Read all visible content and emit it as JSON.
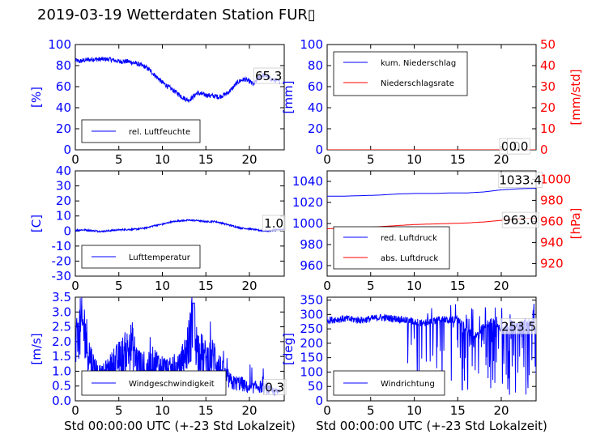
{
  "title": "2019-03-19 Wetterdaten Station FUR\u0000",
  "colors": {
    "blue": "#0000ff",
    "red": "#ff0000",
    "black": "#000000"
  },
  "chart_data": [
    {
      "id": "humidity",
      "type": "line",
      "xlabel": "",
      "ylabel": "[%]",
      "ylabel_color": "#0000ff",
      "xlim": [
        0,
        24
      ],
      "xticks": [
        0,
        5,
        10,
        15,
        20
      ],
      "ylim": [
        0,
        100
      ],
      "yticks": [
        0,
        20,
        40,
        60,
        80,
        100
      ],
      "ytick_color": "#0000ff",
      "legend_position": "lower-left",
      "annotations": [
        {
          "text": "65.3",
          "x": 22.2,
          "y": 70
        }
      ],
      "series": [
        {
          "name": "rel. Luftfeuchte",
          "color": "#0000ff",
          "style": "noisy",
          "x": [
            0,
            0.5,
            1,
            2,
            3,
            4,
            5,
            6,
            7,
            8,
            8.5,
            9,
            9.5,
            10,
            10.5,
            11,
            11.5,
            12,
            12.5,
            13,
            13.5,
            14,
            15,
            16,
            16.5,
            17,
            17.5,
            18,
            18.5,
            19,
            19.5,
            20,
            20.5,
            21,
            21.5,
            22,
            22.5,
            23,
            23.5
          ],
          "y": [
            85,
            84,
            85,
            86,
            86,
            86,
            84,
            84,
            82,
            79,
            76,
            72,
            68,
            64,
            61,
            58,
            55,
            52,
            49,
            47,
            50,
            54,
            52,
            51,
            50,
            52,
            54,
            58,
            63,
            66,
            67,
            65,
            62,
            68,
            71,
            70,
            67,
            66,
            65
          ]
        }
      ]
    },
    {
      "id": "precip",
      "type": "line",
      "xlabel": "",
      "ylabel": "[mm]",
      "ylabel_color": "#0000ff",
      "ylabel_right": "[mm/std]",
      "ylabel_right_color": "#ff0000",
      "xlim": [
        0,
        24
      ],
      "xticks": [
        0,
        5,
        10,
        15,
        20
      ],
      "ylim": [
        0,
        100
      ],
      "yticks": [
        0,
        20,
        40,
        60,
        80,
        100
      ],
      "ytick_color": "#0000ff",
      "ylim_right": [
        0,
        50
      ],
      "yticks_right": [
        0,
        10,
        20,
        30,
        40,
        50
      ],
      "ytick_right_color": "#ff0000",
      "legend_position": "upper-left",
      "annotations": [
        {
          "text": "0.0",
          "x": 21.1,
          "y": 3
        },
        {
          "text": "0.0",
          "x": 22.0,
          "y": 3
        }
      ],
      "series": [
        {
          "name": "kum. Niederschlag",
          "color": "#0000ff",
          "axis": "left",
          "style": "smooth",
          "x": [
            0,
            24
          ],
          "y": [
            0,
            0
          ]
        },
        {
          "name": "Niederschlagsrate",
          "color": "#ff0000",
          "axis": "right",
          "style": "smooth",
          "x": [
            0,
            24
          ],
          "y": [
            0,
            0
          ]
        }
      ]
    },
    {
      "id": "temperature",
      "type": "line",
      "xlabel": "",
      "ylabel": "[C]",
      "ylabel_color": "#0000ff",
      "xlim": [
        0,
        24
      ],
      "xticks": [
        0,
        5,
        10,
        15,
        20
      ],
      "ylim": [
        -30,
        40
      ],
      "yticks": [
        -30,
        -20,
        -10,
        0,
        10,
        20,
        30,
        40
      ],
      "ytick_color": "#0000ff",
      "legend_position": "lower-left",
      "annotations": [
        {
          "text": "1.0",
          "x": 22.8,
          "y": 5
        }
      ],
      "series": [
        {
          "name": "Lufttemperatur",
          "color": "#0000ff",
          "style": "noisy_small",
          "x": [
            0,
            1,
            2,
            3,
            4,
            5,
            6,
            7,
            8,
            9,
            10,
            11,
            12,
            13,
            14,
            15,
            16,
            17,
            18,
            19,
            20,
            21,
            22,
            23,
            24
          ],
          "y": [
            0.5,
            0.8,
            0.2,
            -0.3,
            0.3,
            0.8,
            1.0,
            1.2,
            2.0,
            3.5,
            4.5,
            6.0,
            6.8,
            7.2,
            7.0,
            6.2,
            6.4,
            5.0,
            3.5,
            2.0,
            1.5,
            0.5,
            0.0,
            0.8,
            1.0
          ]
        }
      ]
    },
    {
      "id": "pressure",
      "type": "line",
      "xlabel": "",
      "ylabel": "",
      "ylabel_right": "[hPa]",
      "ylabel_right_color": "#ff0000",
      "xlim": [
        0,
        24
      ],
      "xticks": [
        0,
        5,
        10,
        15,
        20
      ],
      "ylim": [
        950,
        1050
      ],
      "yticks": [
        960,
        980,
        1000,
        1020,
        1040
      ],
      "ytick_color": "#0000ff",
      "ylim_right": [
        908,
        1008
      ],
      "yticks_right": [
        920,
        940,
        960,
        980,
        1000
      ],
      "ytick_right_color": "#ff0000",
      "legend_position": "lower-left",
      "annotations": [
        {
          "text": "1033.4",
          "x": 22.2,
          "y": 1041
        },
        {
          "text": "963.0",
          "x": 22.2,
          "y": 1003
        }
      ],
      "series": [
        {
          "name": "red. Luftdruck",
          "color": "#0000ff",
          "axis": "left",
          "style": "smooth",
          "x": [
            0,
            2,
            4,
            6,
            8,
            10,
            12,
            14,
            16,
            18,
            20,
            22,
            24
          ],
          "y": [
            1026,
            1026,
            1026.5,
            1027,
            1028,
            1028.5,
            1028.5,
            1029,
            1029,
            1030,
            1032,
            1033,
            1033.4
          ]
        },
        {
          "name": "abs. Luftdruck",
          "color": "#ff0000",
          "axis": "right",
          "style": "smooth",
          "x": [
            0,
            2,
            4,
            6,
            8,
            10,
            12,
            14,
            16,
            18,
            20,
            22,
            24
          ],
          "y": [
            953,
            953.5,
            954,
            955,
            956,
            957,
            957.5,
            958,
            958.5,
            959.5,
            961,
            962.5,
            963.0
          ]
        }
      ]
    },
    {
      "id": "windspeed",
      "type": "line",
      "xlabel": "Std 00:00:00 UTC (+-23 Std Lokalzeit)",
      "ylabel": "[m/s]",
      "ylabel_color": "#0000ff",
      "xlim": [
        0,
        24
      ],
      "xticks": [
        0,
        5,
        10,
        15,
        20
      ],
      "ylim": [
        0,
        3.5
      ],
      "yticks": [
        0.0,
        0.5,
        1.0,
        1.5,
        2.0,
        2.5,
        3.0,
        3.5
      ],
      "ytick_labels": [
        "0.0",
        "0.5",
        "1.0",
        "1.5",
        "2.0",
        "2.5",
        "3.0",
        "3.5"
      ],
      "ytick_color": "#0000ff",
      "legend_position": "lower-left",
      "annotations": [
        {
          "text": "0.3",
          "x": 22.9,
          "y": 0.45
        }
      ],
      "series": [
        {
          "name": "Windgeschwindigkeit",
          "color": "#0000ff",
          "style": "spiky",
          "x": [
            0,
            0.5,
            1,
            1.5,
            2,
            3,
            4,
            5,
            6,
            6.5,
            7,
            8,
            9,
            10,
            11,
            12,
            13,
            13.5,
            14,
            15,
            16,
            17,
            18,
            19,
            20,
            21,
            22,
            23,
            23.5
          ],
          "y": [
            1.6,
            2.4,
            2.5,
            1.7,
            1.2,
            0.8,
            1.1,
            1.4,
            1.7,
            1.9,
            1.4,
            1.0,
            1.3,
            1.1,
            1.0,
            1.1,
            1.9,
            2.7,
            1.8,
            1.4,
            1.5,
            0.9,
            0.6,
            0.6,
            0.4,
            0.5,
            0.4,
            0.3,
            0.3
          ]
        }
      ]
    },
    {
      "id": "winddir",
      "type": "line",
      "xlabel": "Std 00:00:00 UTC (+-23 Std Lokalzeit)",
      "ylabel": "[deg]",
      "ylabel_color": "#0000ff",
      "xlim": [
        0,
        24
      ],
      "xticks": [
        0,
        5,
        10,
        15,
        20
      ],
      "ylim": [
        0,
        360
      ],
      "yticks": [
        0,
        50,
        100,
        150,
        200,
        250,
        300,
        350
      ],
      "ytick_color": "#0000ff",
      "legend_position": "lower-left",
      "annotations": [
        {
          "text": "253.5",
          "x": 22.0,
          "y": 258
        }
      ],
      "series": [
        {
          "name": "Windrichtung",
          "color": "#0000ff",
          "style": "direction",
          "x": [
            0,
            2,
            4,
            6,
            8,
            9,
            10,
            11,
            12,
            13,
            14,
            15,
            16,
            17,
            18,
            19,
            20,
            21,
            22,
            23,
            24
          ],
          "y": [
            280,
            285,
            280,
            290,
            285,
            280,
            275,
            270,
            275,
            285,
            280,
            285,
            250,
            220,
            260,
            280,
            250,
            270,
            260,
            280,
            253
          ]
        }
      ]
    }
  ]
}
